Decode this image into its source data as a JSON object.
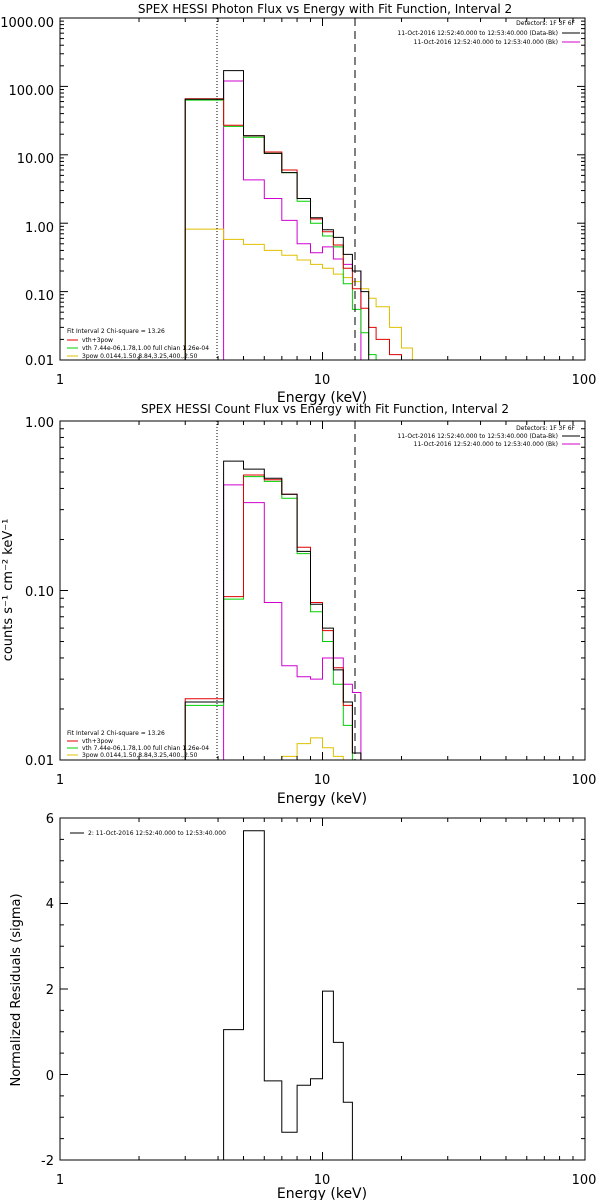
{
  "colors": {
    "background": "#ffffff",
    "axes": "#000000",
    "total": "#000000",
    "vth_3pow": "#e00000",
    "vth": "#00d000",
    "3pow": "#e0c000",
    "bk": "#d000d0"
  },
  "chart_data": [
    {
      "type": "line",
      "title": "SPEX HESSI Photon Flux vs Energy with Fit Function, Interval 2",
      "xlabel": "Energy (keV)",
      "ylabel": "",
      "xscale": "log",
      "yscale": "log",
      "xlim": [
        1,
        100
      ],
      "ylim": [
        0.01,
        1000
      ],
      "xticks": [
        "1",
        "10",
        "100"
      ],
      "yticks": [
        "0.01",
        "0.10",
        "1.00",
        "10.00",
        "100.00",
        "1000.00"
      ],
      "vlines": {
        "dotted": 4.2,
        "dashed": 14.0
      },
      "header": {
        "detectors": "Detectors: 1F 3F 6F",
        "lines": [
          {
            "text": "11-Oct-2016 12:52:40.000 to 12:53:40.000 (Data-Bk)",
            "color": "#000000"
          },
          {
            "text": "11-Oct-2016 12:52:40.000 to 12:53:40.000 (Bk)",
            "color": "#d000d0"
          }
        ]
      },
      "legend": {
        "title": "Fit Interval 2   Chi-square = 13.26",
        "entries": [
          {
            "label": "vth+3pow",
            "color": "#e00000"
          },
          {
            "label": "vth 7.44e-06,1.78,1.00  full chian 1.26e-04",
            "color": "#00d000"
          },
          {
            "label": "3pow 0.0144,1.50,8.84,3.25,400.,2.50",
            "color": "#e0c000"
          }
        ]
      },
      "edges": [
        3,
        4.2,
        5,
        6,
        7,
        8,
        9,
        10,
        11,
        12,
        13,
        14,
        15,
        16,
        18,
        20,
        22
      ],
      "series": [
        {
          "name": "Data-Bk",
          "color": "#000000",
          "values": [
            65,
            170,
            19,
            10.5,
            5.5,
            2.3,
            1.2,
            0.8,
            0.62,
            0.35,
            0.2,
            0.1,
            null,
            null,
            null,
            null
          ]
        },
        {
          "name": "vth+3pow",
          "color": "#e00000",
          "values": [
            66,
            27,
            19,
            11,
            6,
            2.3,
            1.15,
            0.75,
            0.48,
            0.22,
            0.11,
            0.057,
            0.03,
            0.02,
            0.012,
            null
          ]
        },
        {
          "name": "vth",
          "color": "#00d000",
          "values": [
            63,
            26,
            18,
            10.5,
            5.5,
            2.1,
            1.0,
            0.65,
            0.45,
            0.13,
            0.055,
            0.025,
            0.012,
            null,
            null,
            null
          ]
        },
        {
          "name": "3pow",
          "color": "#e0c000",
          "values": [
            0.82,
            0.58,
            0.49,
            0.4,
            0.34,
            0.29,
            0.25,
            0.22,
            0.18,
            0.16,
            0.14,
            0.11,
            0.08,
            0.06,
            0.03,
            0.015
          ]
        },
        {
          "name": "Bk",
          "color": "#d000d0",
          "values": [
            null,
            120,
            4.3,
            2.3,
            1.1,
            0.5,
            0.37,
            0.45,
            0.3,
            0.25,
            0.2,
            null,
            null,
            null,
            null,
            null
          ]
        }
      ]
    },
    {
      "type": "line",
      "title": "SPEX HESSI Count Flux vs Energy with Fit Function, Interval 2",
      "xlabel": "Energy (keV)",
      "ylabel": "counts s⁻¹ cm⁻² keV⁻¹",
      "xscale": "log",
      "yscale": "log",
      "xlim": [
        1,
        100
      ],
      "ylim": [
        0.01,
        1.0
      ],
      "xticks": [
        "1",
        "10",
        "100"
      ],
      "yticks": [
        "0.01",
        "0.10",
        "1.00"
      ],
      "vlines": {
        "dotted": 4.2,
        "dashed": 14.0
      },
      "header": {
        "detectors": "Detectors: 1F 3F 6F",
        "lines": [
          {
            "text": "11-Oct-2016 12:52:40.000 to 12:53:40.000 (Data-Bk)",
            "color": "#000000"
          },
          {
            "text": "11-Oct-2016 12:52:40.000 to 12:53:40.000 (Bk)",
            "color": "#d000d0"
          }
        ]
      },
      "legend": {
        "title": "Fit Interval 2   Chi-square = 13.26",
        "entries": [
          {
            "label": "vth+3pow",
            "color": "#e00000"
          },
          {
            "label": "vth 7.44e-06,1.78,1.00  full chian 1.26e-04",
            "color": "#00d000"
          },
          {
            "label": "3pow 0.0144,1.50,8.84,3.25,400.,2.50",
            "color": "#e0c000"
          }
        ]
      },
      "edges": [
        3,
        4.2,
        5,
        6,
        7,
        8,
        9,
        10,
        11,
        12,
        13,
        14
      ],
      "series": [
        {
          "name": "Data-Bk",
          "color": "#000000",
          "values": [
            0.022,
            0.58,
            0.52,
            0.46,
            0.37,
            0.17,
            0.083,
            0.06,
            0.034,
            0.022,
            0.011
          ]
        },
        {
          "name": "vth+3pow",
          "color": "#e00000",
          "values": [
            0.023,
            0.092,
            0.48,
            0.45,
            0.37,
            0.18,
            0.085,
            0.058,
            0.035,
            0.021,
            0.011
          ]
        },
        {
          "name": "vth",
          "color": "#00d000",
          "values": [
            0.021,
            0.089,
            0.47,
            0.44,
            0.35,
            0.165,
            0.075,
            0.05,
            0.028,
            0.016,
            0.009
          ]
        },
        {
          "name": "3pow",
          "color": "#e0c000",
          "values": [
            null,
            null,
            null,
            null,
            0.0105,
            0.0125,
            0.0135,
            0.0118,
            0.0105,
            0.0095,
            null
          ]
        },
        {
          "name": "Bk",
          "color": "#d000d0",
          "values": [
            null,
            0.42,
            0.33,
            0.085,
            0.036,
            0.031,
            0.03,
            0.04,
            0.04,
            0.028,
            0.025
          ]
        }
      ]
    },
    {
      "type": "line",
      "title": "",
      "xlabel": "Energy (keV)",
      "ylabel": "Normalized Residuals (sigma)",
      "xscale": "log",
      "yscale": "linear",
      "xlim": [
        1,
        100
      ],
      "ylim": [
        -2,
        6
      ],
      "xticks": [
        "1",
        "10",
        "100"
      ],
      "yticks": [
        "-2",
        "0",
        "2",
        "4",
        "6"
      ],
      "legend": {
        "title": "",
        "entries": [
          {
            "label": "2: 11-Oct-2016 12:52:40.000 to 12:53:40.000",
            "color": "#000000"
          }
        ]
      },
      "edges": [
        4.2,
        5,
        6,
        7,
        8,
        9,
        10,
        11,
        12,
        13,
        14
      ],
      "series": [
        {
          "name": "residuals",
          "color": "#000000",
          "values": [
            1.05,
            5.7,
            -0.15,
            -1.35,
            -0.25,
            -0.1,
            1.95,
            0.75,
            -0.65,
            -2.0
          ]
        }
      ]
    }
  ]
}
